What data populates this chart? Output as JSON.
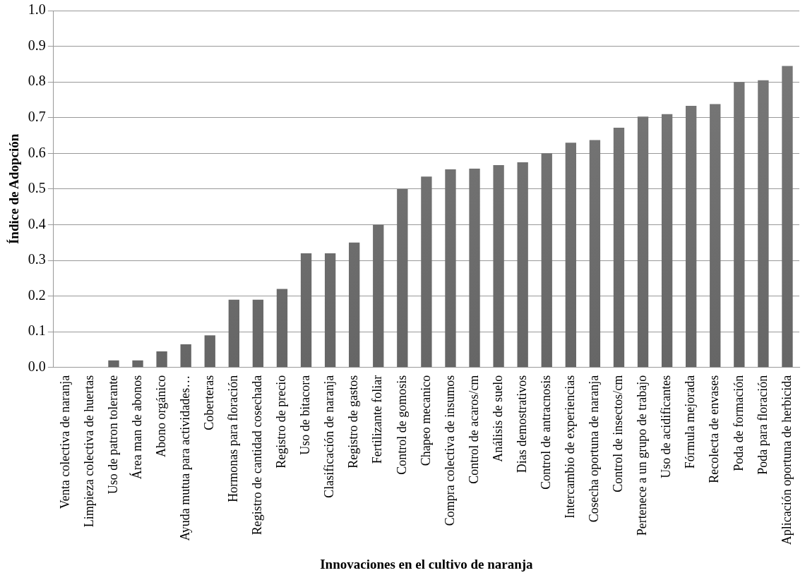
{
  "chart_data": {
    "type": "bar",
    "xlabel": "Innovaciones en el cultivo de naranja",
    "ylabel": "Índice de Adopción",
    "categories": [
      "Venta colectiva de naranja",
      "Limpieza colectiva de huertas",
      "Uso de patron tolerante",
      "Área man de abonos",
      "Abono orgánico",
      "Ayuda mutua para actividades…",
      "Coberteras",
      "Hormonas para floración",
      "Registro de cantidad cosechada",
      "Registro de precio",
      "Uso de bitacora",
      "Clasificación de naranja",
      "Registro de gastos",
      "Fertilizante foliar",
      "Control de gomosis",
      "Chapeo mecanico",
      "Compra colectiva de insumos",
      "Control de acaros/cm",
      "Análisis de suelo",
      "Dias demostrativos",
      "Control de antracnosis",
      "Intercambio de experiencias",
      "Cosecha oportuna de naranja",
      "Control de insectos/cm",
      "Pertenece a un grupo de trabajo",
      "Uso de acidificantes",
      "Fórmula mejorada",
      "Recolecta de envases",
      "Poda de formación",
      "Poda para floración",
      "Aplicación oportuna de herbicida"
    ],
    "values": [
      0,
      0,
      0.02,
      0.02,
      0.045,
      0.065,
      0.09,
      0.19,
      0.19,
      0.22,
      0.32,
      0.32,
      0.35,
      0.4,
      0.5,
      0.535,
      0.555,
      0.557,
      0.567,
      0.575,
      0.6,
      0.63,
      0.637,
      0.672,
      0.703,
      0.71,
      0.733,
      0.738,
      0.8,
      0.805,
      0.845
    ],
    "color": "#666666",
    "ylim": [
      0,
      1
    ],
    "yticks": [
      {
        "value": 0,
        "label": "0.0"
      },
      {
        "value": 0.1,
        "label": "0.1"
      },
      {
        "value": 0.2,
        "label": "0.2"
      },
      {
        "value": 0.3,
        "label": "0.3"
      },
      {
        "value": 0.4,
        "label": "0.4"
      },
      {
        "value": 0.5,
        "label": "0.5"
      },
      {
        "value": 0.6,
        "label": "0.6"
      },
      {
        "value": 0.7,
        "label": "0.7"
      },
      {
        "value": 0.8,
        "label": "0.8"
      },
      {
        "value": 0.9,
        "label": "0.9"
      },
      {
        "value": 1,
        "label": "1.0"
      }
    ],
    "grid": "y",
    "legend": false
  }
}
